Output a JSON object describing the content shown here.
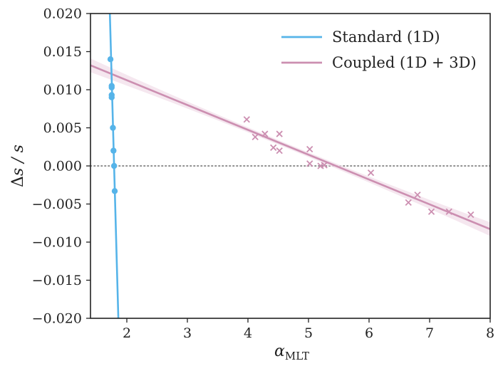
{
  "chart_data": {
    "type": "scatter",
    "title": "",
    "xlabel": "α",
    "xlabel_sub": "MLT",
    "ylabel_delta": "Δ",
    "ylabel_var": "s / s",
    "xlim": [
      1.4,
      8.0
    ],
    "ylim": [
      -0.02,
      0.02
    ],
    "xticks": [
      2,
      3,
      4,
      5,
      6,
      7,
      8
    ],
    "xtick_labels": [
      "2",
      "3",
      "4",
      "5",
      "6",
      "7",
      "8"
    ],
    "yticks": [
      0.02,
      0.015,
      0.01,
      0.005,
      0.0,
      -0.005,
      -0.01,
      -0.015,
      -0.02
    ],
    "ytick_labels": [
      "0.020",
      "0.015",
      "0.010",
      "0.005",
      "0.000",
      "−0.005",
      "−0.010",
      "−0.015",
      "−0.020"
    ],
    "reference_line": {
      "y": 0.0,
      "style": "dotted",
      "color": "#7f7f7f"
    },
    "legend_position": "top-right",
    "series": [
      {
        "name": "Standard (1D)",
        "color": "#56b4e9",
        "marker": "circle",
        "fit_line": {
          "points": [
            [
              1.72,
              0.02
            ],
            [
              1.86,
              -0.02
            ]
          ]
        },
        "points": [
          [
            1.73,
            0.014
          ],
          [
            1.75,
            0.0105
          ],
          [
            1.75,
            0.0103
          ],
          [
            1.75,
            0.0093
          ],
          [
            1.75,
            0.009
          ],
          [
            1.77,
            0.005
          ],
          [
            1.78,
            0.002
          ],
          [
            1.79,
            0.0
          ],
          [
            1.8,
            -0.0033
          ]
        ]
      },
      {
        "name": "Coupled (1D + 3D)",
        "color": "#cc8fb1",
        "band_color": "#f1dfea",
        "marker": "x",
        "fit_line": {
          "points": [
            [
              1.4,
              0.0132
            ],
            [
              8.0,
              -0.0083
            ]
          ]
        },
        "band_halfwidth_ends": 0.0009,
        "band_halfwidth_mid": 0.0003,
        "points": [
          [
            3.98,
            0.0061
          ],
          [
            4.12,
            0.0038
          ],
          [
            4.28,
            0.0042
          ],
          [
            4.42,
            0.0024
          ],
          [
            4.52,
            0.0042
          ],
          [
            4.52,
            0.002
          ],
          [
            5.02,
            0.0022
          ],
          [
            5.02,
            0.0003
          ],
          [
            5.2,
            0.0
          ],
          [
            5.26,
            0.0001
          ],
          [
            6.03,
            -0.0009
          ],
          [
            6.65,
            -0.0048
          ],
          [
            6.8,
            -0.0038
          ],
          [
            7.03,
            -0.006
          ],
          [
            7.32,
            -0.006
          ],
          [
            7.68,
            -0.0064
          ]
        ]
      }
    ]
  }
}
